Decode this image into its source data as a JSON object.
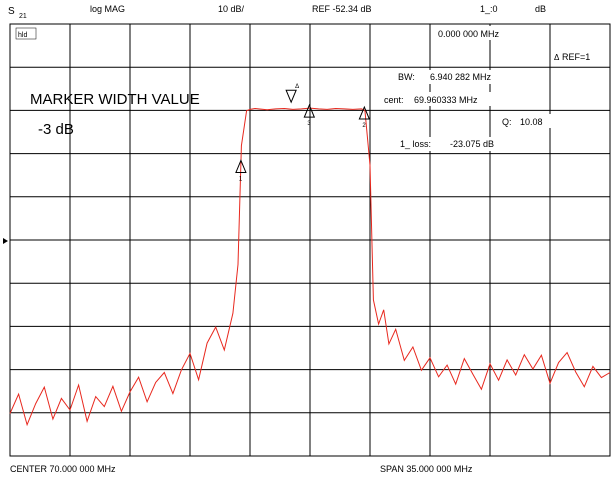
{
  "header": {
    "channel_main": "S",
    "channel_sub": "21",
    "format": "log MAG",
    "scale": "10 dB/",
    "ref": "REF -52.34 dB",
    "marker_value": "1_:0",
    "marker_unit": "dB"
  },
  "markers": {
    "mode_tag": "hld",
    "freq_readout": "0.000 000 MHz",
    "ref_tag": "REF=1",
    "bw_label": "BW:",
    "bw_value": "6.940 282 MHz",
    "cent_label": "cent:",
    "cent_value": "69.960333 MHz",
    "q_label": "Q:",
    "q_value": "10.08",
    "loss_label": "1_ loss:",
    "loss_value": "-23.075 dB",
    "marker_ids": [
      "1",
      "2",
      "3",
      "4"
    ]
  },
  "annotations": {
    "title": "MARKER WIDTH VALUE",
    "subtitle": "-3 dB"
  },
  "footer": {
    "center": "CENTER  70.000 000 MHz",
    "span": "SPAN  35.000 000 MHz"
  },
  "colors": {
    "trace": "#e8281e",
    "grid": "#000000",
    "background": "#ffffff"
  },
  "chart_data": {
    "type": "line",
    "x_unit": "MHz",
    "y_unit": "dB",
    "xlim": [
      52.5,
      87.5
    ],
    "ylim": [
      -102.34,
      -2.34
    ],
    "x_divisions": 10,
    "y_divisions": 10,
    "grid": true,
    "series": [
      {
        "x": [
          52.5,
          53.0,
          53.5,
          54.0,
          54.5,
          55.0,
          55.5,
          56.0,
          56.5,
          57.0,
          57.5,
          58.0,
          58.5,
          59.0,
          59.5,
          60.0,
          60.5,
          61.0,
          61.5,
          62.0,
          62.5,
          63.0,
          63.5,
          64.0,
          64.5,
          65.0,
          65.5,
          65.8,
          66.0,
          66.3,
          66.5,
          66.8,
          67.0,
          67.5,
          68.0,
          68.5,
          69.0,
          69.5,
          70.0,
          70.5,
          71.0,
          71.5,
          72.0,
          72.5,
          73.0,
          73.2,
          73.5,
          73.7,
          74.0,
          74.3,
          74.6,
          75.0,
          75.5,
          76.0,
          76.5,
          77.0,
          77.5,
          78.0,
          78.5,
          79.0,
          79.5,
          80.0,
          80.5,
          81.0,
          81.5,
          82.0,
          82.5,
          83.0,
          83.5,
          84.0,
          84.5,
          85.0,
          85.5,
          86.0,
          86.5,
          87.0,
          87.5
        ],
        "y": [
          -92.5,
          -88.0,
          -95.1,
          -90.2,
          -86.4,
          -93.8,
          -89.0,
          -91.7,
          -85.9,
          -94.3,
          -88.6,
          -90.9,
          -86.2,
          -92.0,
          -87.5,
          -84.1,
          -89.8,
          -85.3,
          -83.0,
          -87.9,
          -82.4,
          -78.6,
          -84.7,
          -76.2,
          -72.5,
          -77.8,
          -69.3,
          -58.0,
          -30.5,
          -22.4,
          -22.1,
          -21.9,
          -22.0,
          -22.2,
          -22.0,
          -21.9,
          -22.1,
          -22.0,
          -21.8,
          -22.0,
          -22.1,
          -21.9,
          -22.0,
          -22.1,
          -22.0,
          -22.3,
          -35.0,
          -66.2,
          -71.8,
          -68.5,
          -76.4,
          -73.0,
          -80.2,
          -77.1,
          -82.5,
          -79.6,
          -84.0,
          -81.3,
          -85.7,
          -79.8,
          -83.4,
          -86.9,
          -81.0,
          -84.8,
          -80.1,
          -83.6,
          -78.9,
          -82.2,
          -79.0,
          -85.5,
          -80.7,
          -78.4,
          -82.9,
          -86.3,
          -81.6,
          -84.2,
          -83.0
        ]
      }
    ],
    "marker_x": [
      65.97,
      73.17,
      69.96,
      68.9
    ]
  }
}
